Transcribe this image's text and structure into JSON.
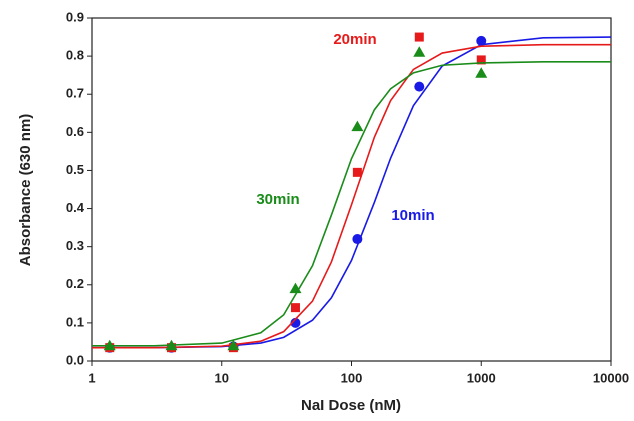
{
  "chart_data": {
    "type": "scatter",
    "xlabel": "NaI Dose (nM)",
    "ylabel": "Absorbance (630 nm)",
    "xscale": "log",
    "xlim": [
      1,
      10000
    ],
    "xticks": [
      1,
      10,
      100,
      1000,
      10000
    ],
    "ylim": [
      0,
      0.9
    ],
    "yticks": [
      {
        "value": 0,
        "label": "0.0"
      },
      0.1,
      0.2,
      0.3,
      0.4,
      0.5,
      0.6,
      0.7,
      0.8,
      0.9
    ],
    "x": [
      1.37,
      4.1,
      12.3,
      37,
      111,
      333,
      1000
    ],
    "fit_x": [
      1,
      3,
      10,
      20,
      30,
      50,
      70,
      100,
      150,
      200,
      300,
      500,
      1000,
      3000,
      10000
    ],
    "series": [
      {
        "name": "10min",
        "color": "#1a1ae6",
        "marker": "circle",
        "values": [
          0.035,
          0.035,
          0.038,
          0.1,
          0.32,
          0.72,
          0.84
        ],
        "fit_values": [
          0.035,
          0.035,
          0.038,
          0.047,
          0.062,
          0.107,
          0.166,
          0.264,
          0.416,
          0.532,
          0.67,
          0.774,
          0.83,
          0.848,
          0.85
        ]
      },
      {
        "name": "20min",
        "color": "#e61a1a",
        "marker": "square",
        "values": [
          0.035,
          0.035,
          0.035,
          0.14,
          0.495,
          0.85,
          0.79
        ],
        "fit_values": [
          0.035,
          0.035,
          0.039,
          0.052,
          0.077,
          0.157,
          0.26,
          0.41,
          0.587,
          0.683,
          0.765,
          0.808,
          0.826,
          0.83,
          0.83
        ]
      },
      {
        "name": "30min",
        "color": "#1a8c1a",
        "marker": "triangle",
        "values": [
          0.04,
          0.04,
          0.04,
          0.19,
          0.615,
          0.81,
          0.755
        ],
        "fit_values": [
          0.04,
          0.04,
          0.047,
          0.074,
          0.121,
          0.25,
          0.383,
          0.531,
          0.659,
          0.714,
          0.756,
          0.776,
          0.782,
          0.785,
          0.785
        ]
      }
    ]
  }
}
